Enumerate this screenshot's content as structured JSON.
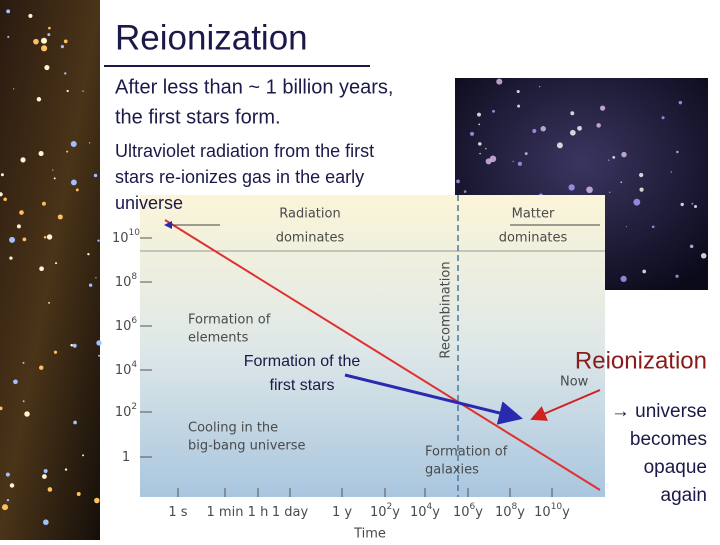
{
  "title": "Reionization",
  "bullets": [
    {
      "lines": [
        "After less than ~ 1 billion years,",
        "the first stars form."
      ]
    },
    {
      "lines": [
        "Ultraviolet radiation from the first",
        "stars re-ionizes gas in the early",
        "universe"
      ]
    }
  ],
  "figure": {
    "eras": [
      {
        "lines": [
          "Radiation",
          "dominates"
        ]
      },
      {
        "lines": [
          "Matter",
          "dominates"
        ]
      }
    ],
    "recombination": "Recombination",
    "yticks": [
      {
        "base": "10",
        "exp": "10"
      },
      {
        "base": "10",
        "exp": "8"
      },
      {
        "base": "10",
        "exp": "6"
      },
      {
        "base": "10",
        "exp": "4"
      },
      {
        "base": "10",
        "exp": "2"
      },
      {
        "base": "1",
        "exp": ""
      }
    ],
    "xticks": [
      {
        "base": "1 s",
        "exp": "",
        "unit": ""
      },
      {
        "base": "1 min",
        "exp": "",
        "unit": ""
      },
      {
        "base": "1 h",
        "exp": "",
        "unit": ""
      },
      {
        "base": "1 day",
        "exp": "",
        "unit": ""
      },
      {
        "base": "1 y",
        "exp": "",
        "unit": ""
      },
      {
        "base": "10",
        "exp": "2",
        "unit": "y"
      },
      {
        "base": "10",
        "exp": "4",
        "unit": "y"
      },
      {
        "base": "10",
        "exp": "6",
        "unit": "y"
      },
      {
        "base": "10",
        "exp": "8",
        "unit": "y"
      },
      {
        "base": "10",
        "exp": "10",
        "unit": "y"
      }
    ],
    "xlabel": "Time",
    "annotations": [
      {
        "lines": [
          "Formation of",
          "elements"
        ]
      },
      {
        "lines": [
          "Cooling in the",
          "big-bang universe"
        ]
      },
      {
        "lines": [
          "Formation of",
          "galaxies"
        ]
      },
      {
        "lines": [
          "Now"
        ]
      }
    ]
  },
  "callout": {
    "lines": [
      "Formation of the",
      "first stars"
    ]
  },
  "side": {
    "heading": "Reionization",
    "lines": [
      "→ universe",
      "becomes",
      "opaque",
      "again"
    ]
  }
}
